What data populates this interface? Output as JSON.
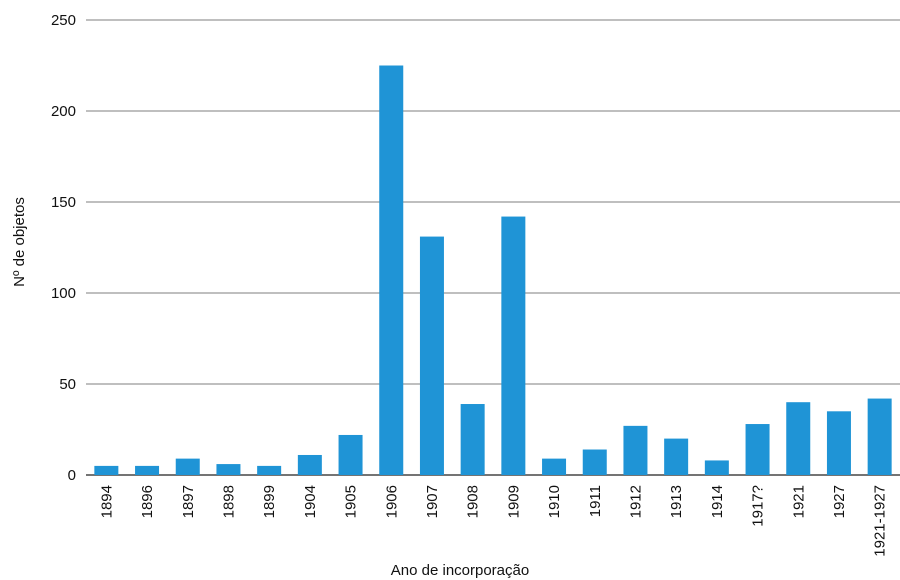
{
  "chart_data": {
    "type": "bar",
    "title": "",
    "xlabel": "Ano de incorporação",
    "ylabel": "Nº de objetos",
    "ylim": [
      0,
      250
    ],
    "yticks": [
      0,
      50,
      100,
      150,
      200,
      250
    ],
    "grid": "horizontal",
    "legend": "none",
    "bar_color": "#1f94d6",
    "categories": [
      "1894",
      "1896",
      "1897",
      "1898",
      "1899",
      "1904",
      "1905",
      "1906",
      "1907",
      "1908",
      "1909",
      "1910",
      "1911",
      "1912",
      "1913",
      "1914",
      "1917?",
      "1921",
      "1927",
      "1921-1927"
    ],
    "values": [
      5,
      5,
      9,
      6,
      5,
      11,
      22,
      225,
      131,
      39,
      142,
      9,
      14,
      27,
      20,
      8,
      28,
      40,
      35,
      42
    ]
  }
}
